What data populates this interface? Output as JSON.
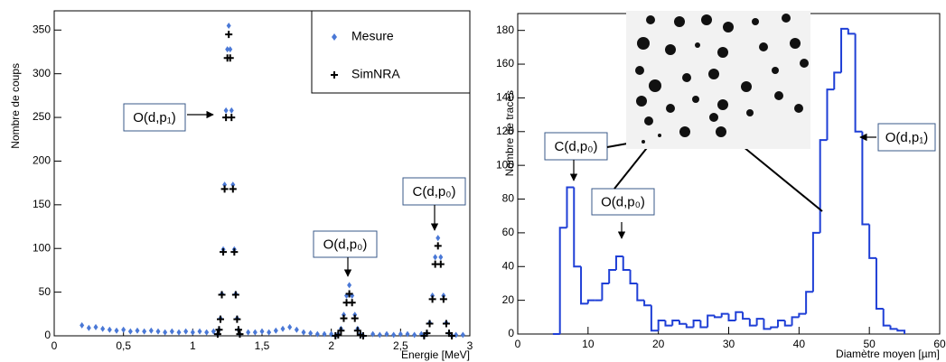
{
  "chart_data": [
    {
      "type": "scatter",
      "ylabel": "Nombre de coups",
      "xlabel": "Energie [MeV]",
      "xlim": [
        0,
        3
      ],
      "ylim": [
        0,
        372
      ],
      "xticks": [
        0,
        {
          "value": 0.5,
          "label": "0,5"
        },
        1,
        {
          "value": 1.5,
          "label": "1,5"
        },
        2,
        {
          "value": 2.5,
          "label": "2,5"
        },
        3
      ],
      "yticks": [
        0,
        50,
        100,
        150,
        200,
        250,
        300,
        350
      ],
      "legend": "top-right",
      "series": [
        {
          "name": "Mesure",
          "color": "#4a78d6",
          "marker": "diamond",
          "x": [
            0.2,
            0.25,
            0.3,
            0.35,
            0.4,
            0.45,
            0.5,
            0.55,
            0.6,
            0.65,
            0.7,
            0.75,
            0.8,
            0.85,
            0.9,
            0.95,
            1.0,
            1.05,
            1.1,
            1.15,
            1.18,
            1.19,
            1.2,
            1.21,
            1.22,
            1.23,
            1.24,
            1.25,
            1.26,
            1.27,
            1.28,
            1.29,
            1.3,
            1.31,
            1.32,
            1.33,
            1.34,
            1.4,
            1.45,
            1.5,
            1.55,
            1.6,
            1.65,
            1.7,
            1.75,
            1.8,
            1.85,
            1.9,
            1.95,
            2.0,
            2.03,
            2.05,
            2.07,
            2.09,
            2.11,
            2.13,
            2.15,
            2.17,
            2.19,
            2.21,
            2.23,
            2.3,
            2.35,
            2.4,
            2.45,
            2.5,
            2.55,
            2.6,
            2.65,
            2.67,
            2.69,
            2.71,
            2.73,
            2.75,
            2.77,
            2.79,
            2.81,
            2.83,
            2.85,
            2.87,
            2.9,
            2.95
          ],
          "values": [
            12,
            9,
            10,
            8,
            7,
            6,
            7,
            5,
            6,
            5,
            6,
            5,
            4,
            5,
            4,
            5,
            4,
            5,
            4,
            5,
            2,
            7,
            20,
            48,
            99,
            173,
            258,
            328,
            355,
            328,
            258,
            173,
            99,
            48,
            20,
            7,
            2,
            4,
            4,
            5,
            4,
            6,
            8,
            10,
            7,
            4,
            3,
            2,
            2,
            2,
            0,
            2,
            8,
            24,
            46,
            58,
            46,
            24,
            8,
            2,
            0,
            2,
            1,
            2,
            1,
            2,
            2,
            1,
            2,
            0,
            3,
            15,
            46,
            90,
            112,
            90,
            46,
            15,
            3,
            0,
            1,
            1
          ]
        },
        {
          "name": "SimNRA",
          "color": "#000000",
          "marker": "plus",
          "x": [
            1.18,
            1.19,
            1.2,
            1.21,
            1.22,
            1.23,
            1.24,
            1.25,
            1.26,
            1.27,
            1.28,
            1.29,
            1.3,
            1.31,
            1.32,
            1.33,
            1.34,
            2.03,
            2.05,
            2.07,
            2.09,
            2.11,
            2.13,
            2.15,
            2.17,
            2.19,
            2.21,
            2.23,
            2.67,
            2.69,
            2.71,
            2.73,
            2.75,
            2.77,
            2.79,
            2.81,
            2.83,
            2.85,
            2.87
          ],
          "values": [
            2,
            7,
            19,
            47,
            96,
            168,
            250,
            318,
            345,
            318,
            250,
            168,
            96,
            47,
            19,
            7,
            2,
            0,
            1,
            6,
            20,
            38,
            48,
            38,
            20,
            6,
            1,
            0,
            0,
            3,
            14,
            42,
            82,
            103,
            82,
            42,
            14,
            3,
            0
          ]
        }
      ],
      "annotations": [
        {
          "text": "O(d,p₁)"
        },
        {
          "text": "O(d,p₀)"
        },
        {
          "text": "C(d,p₀)"
        }
      ]
    },
    {
      "type": "histogram",
      "ylabel": "Nombre de traces",
      "xlabel": "Diamètre moyen [µm]",
      "xlim": [
        0,
        60
      ],
      "ylim": [
        0,
        190
      ],
      "xticks": [
        0,
        10,
        20,
        30,
        40,
        50,
        60
      ],
      "yticks": [
        0,
        20,
        40,
        60,
        80,
        100,
        120,
        140,
        160,
        180
      ],
      "color": "#1f3fd6",
      "bins": [
        5,
        6,
        7,
        8,
        9,
        10,
        11,
        12,
        13,
        14,
        15,
        16,
        17,
        18,
        19,
        20,
        21,
        22,
        23,
        24,
        25,
        26,
        27,
        28,
        29,
        30,
        31,
        32,
        33,
        34,
        35,
        36,
        37,
        38,
        39,
        40,
        41,
        42,
        43,
        44,
        45,
        46,
        47,
        48,
        49,
        50,
        51,
        52,
        53,
        54,
        55
      ],
      "values": [
        0,
        63,
        87,
        40,
        18,
        20,
        20,
        30,
        38,
        46,
        38,
        30,
        20,
        17,
        2,
        8,
        5,
        8,
        6,
        4,
        8,
        4,
        11,
        10,
        12,
        8,
        13,
        9,
        5,
        9,
        3,
        4,
        8,
        5,
        10,
        12,
        25,
        60,
        115,
        145,
        155,
        181,
        178,
        120,
        65,
        45,
        15,
        5,
        3,
        2
      ],
      "annotations": [
        {
          "text": "C(d,p₀)"
        },
        {
          "text": "O(d,p₀)"
        },
        {
          "text": "O(d,p₁)"
        }
      ]
    }
  ]
}
